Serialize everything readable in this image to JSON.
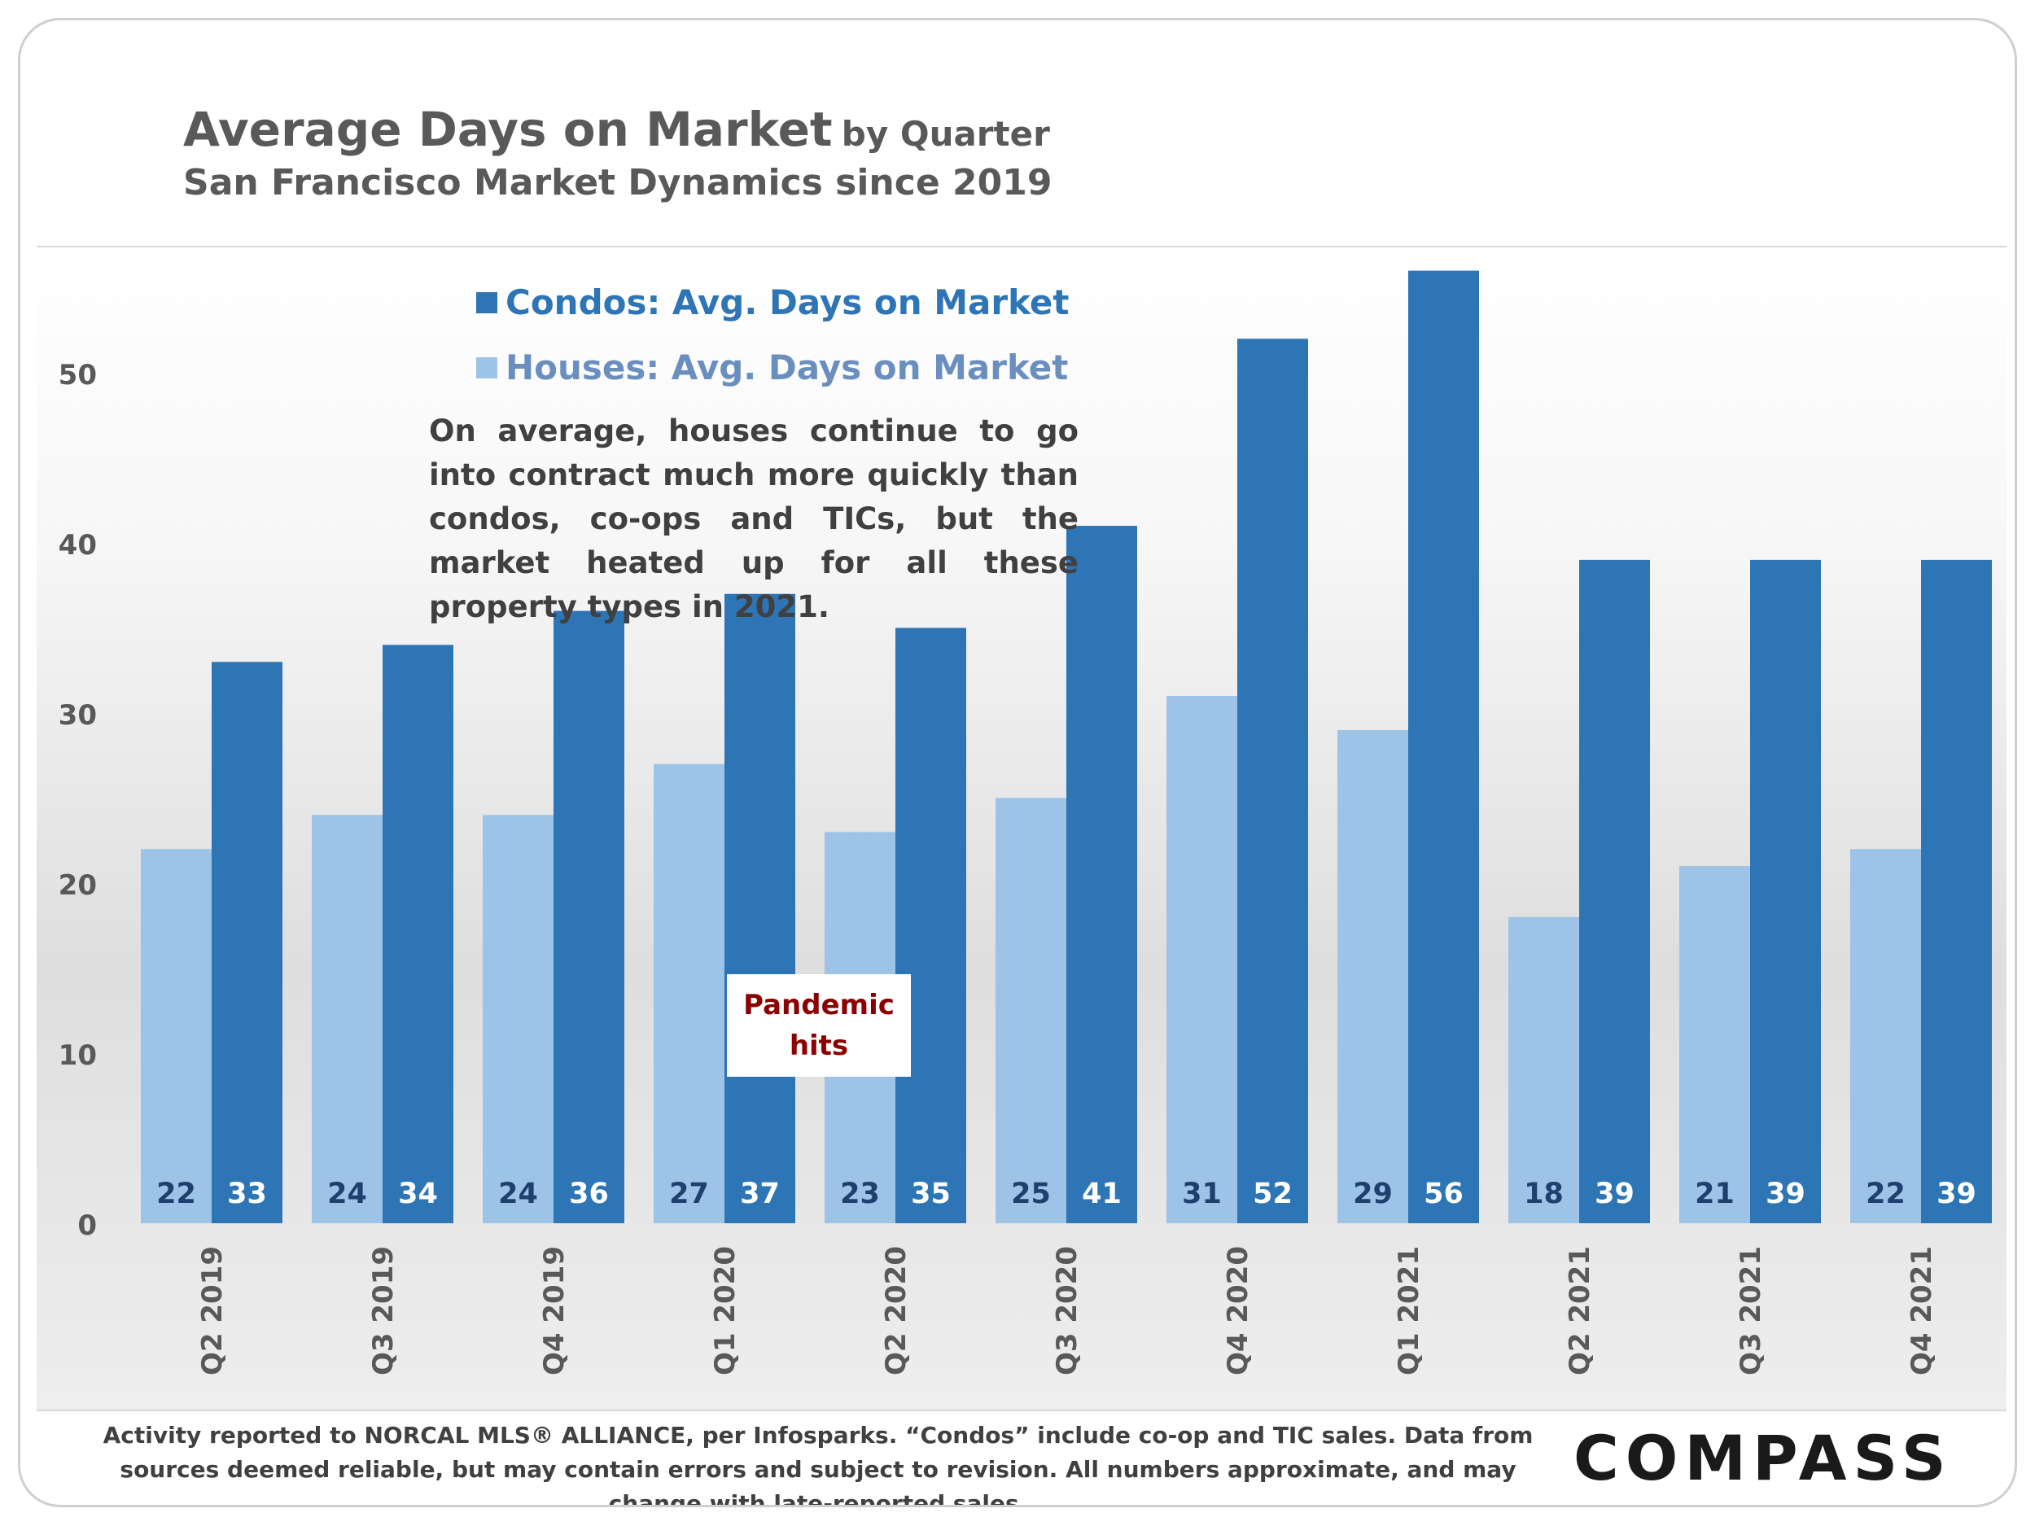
{
  "title": {
    "main": "Average Days on Market",
    "qualifier": "by Quarter",
    "subtitle": "San Francisco Market Dynamics since 2019"
  },
  "legend": {
    "condos": "Condos: Avg. Days on Market",
    "houses": "Houses: Avg. Days on Market"
  },
  "annotation": "On average, houses continue to go into contract much more quickly than condos, co-ops and TICs, but the market heated up for all these property types in 2021.",
  "callout": {
    "line1": "Pandemic",
    "line2": "hits"
  },
  "footnote": "Activity reported to NORCAL MLS® ALLIANCE, per Infosparks. “Condos” include co-op and TIC sales. Data from sources deemed reliable, but may contain errors and subject to revision. All numbers approximate, and may change with late-reported sales.",
  "logo": "COMPASS",
  "colors": {
    "houses": "#9dc3e6",
    "condos": "#2e75b6",
    "data_label": "#1f3f6e",
    "axis_text": "#595959",
    "callout_text": "#8b0000"
  },
  "chart_data": {
    "type": "bar",
    "categories": [
      "Q2 2019",
      "Q3 2019",
      "Q4 2019",
      "Q1 2020",
      "Q2 2020",
      "Q3 2020",
      "Q4 2020",
      "Q1 2021",
      "Q2 2021",
      "Q3 2021",
      "Q4 2021"
    ],
    "series": [
      {
        "name": "Houses: Avg. Days on Market",
        "values": [
          22,
          24,
          24,
          27,
          23,
          25,
          31,
          29,
          18,
          21,
          22
        ]
      },
      {
        "name": "Condos: Avg. Days on Market",
        "values": [
          33,
          34,
          36,
          37,
          35,
          41,
          52,
          56,
          39,
          39,
          39
        ]
      }
    ],
    "yticks": [
      0,
      10,
      20,
      30,
      40,
      50
    ],
    "ylim": [
      0,
      56
    ],
    "grid": false,
    "data_labels": true,
    "legend_position": "top-center",
    "x_tick_rotation": "vertical"
  }
}
